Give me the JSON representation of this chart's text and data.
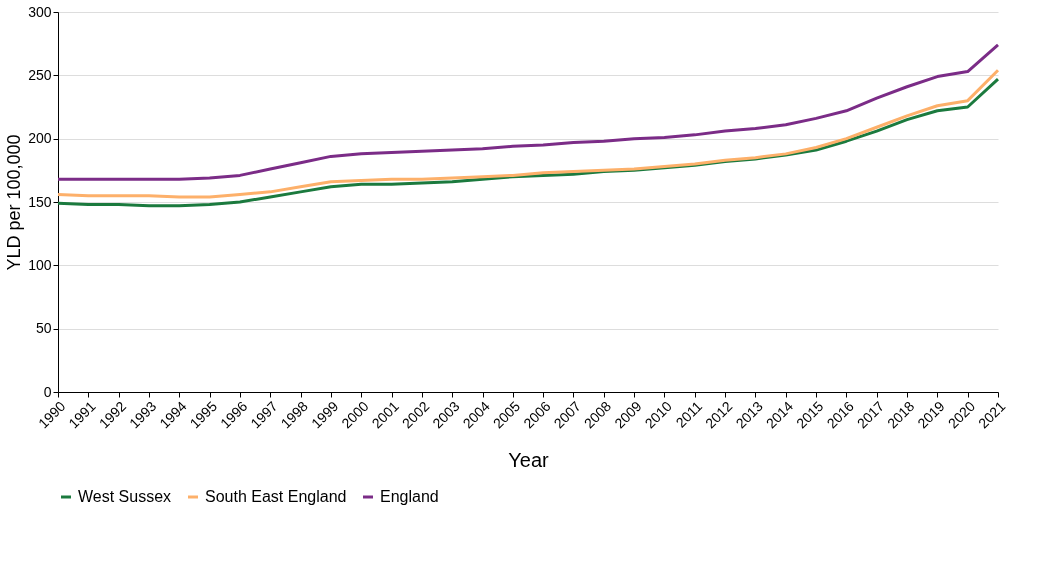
{
  "chart_data": {
    "type": "line",
    "xlabel": "Year",
    "ylabel": "YLD per 100,000",
    "categories": [
      "1990",
      "1991",
      "1992",
      "1993",
      "1994",
      "1995",
      "1996",
      "1997",
      "1998",
      "1999",
      "2000",
      "2001",
      "2002",
      "2003",
      "2004",
      "2005",
      "2006",
      "2007",
      "2008",
      "2009",
      "2010",
      "2011",
      "2012",
      "2013",
      "2014",
      "2015",
      "2016",
      "2017",
      "2018",
      "2019",
      "2020",
      "2021"
    ],
    "series": [
      {
        "name": "West Sussex",
        "color": "#1b7a3e",
        "values": [
          149,
          148,
          148,
          147,
          147,
          148,
          150,
          154,
          158,
          162,
          164,
          164,
          165,
          166,
          168,
          170,
          171,
          172,
          174,
          175,
          177,
          179,
          182,
          184,
          187,
          191,
          198,
          206,
          215,
          222,
          225,
          247
        ]
      },
      {
        "name": "South East England",
        "color": "#fdb06a",
        "values": [
          156,
          155,
          155,
          155,
          154,
          154,
          156,
          158,
          162,
          166,
          167,
          168,
          168,
          169,
          170,
          171,
          173,
          174,
          175,
          176,
          178,
          180,
          183,
          185,
          188,
          193,
          200,
          209,
          218,
          226,
          230,
          254
        ]
      },
      {
        "name": "England",
        "color": "#7b2c87",
        "values": [
          168,
          168,
          168,
          168,
          168,
          169,
          171,
          176,
          181,
          186,
          188,
          189,
          190,
          191,
          192,
          194,
          195,
          197,
          198,
          200,
          201,
          203,
          206,
          208,
          211,
          216,
          222,
          232,
          241,
          249,
          253,
          274
        ]
      }
    ],
    "ylim": [
      0,
      300
    ],
    "yticks": [
      0,
      50,
      100,
      150,
      200,
      250,
      300
    ],
    "grid": "y",
    "legend": "bottom",
    "marker": "none",
    "line_style": "solid"
  }
}
